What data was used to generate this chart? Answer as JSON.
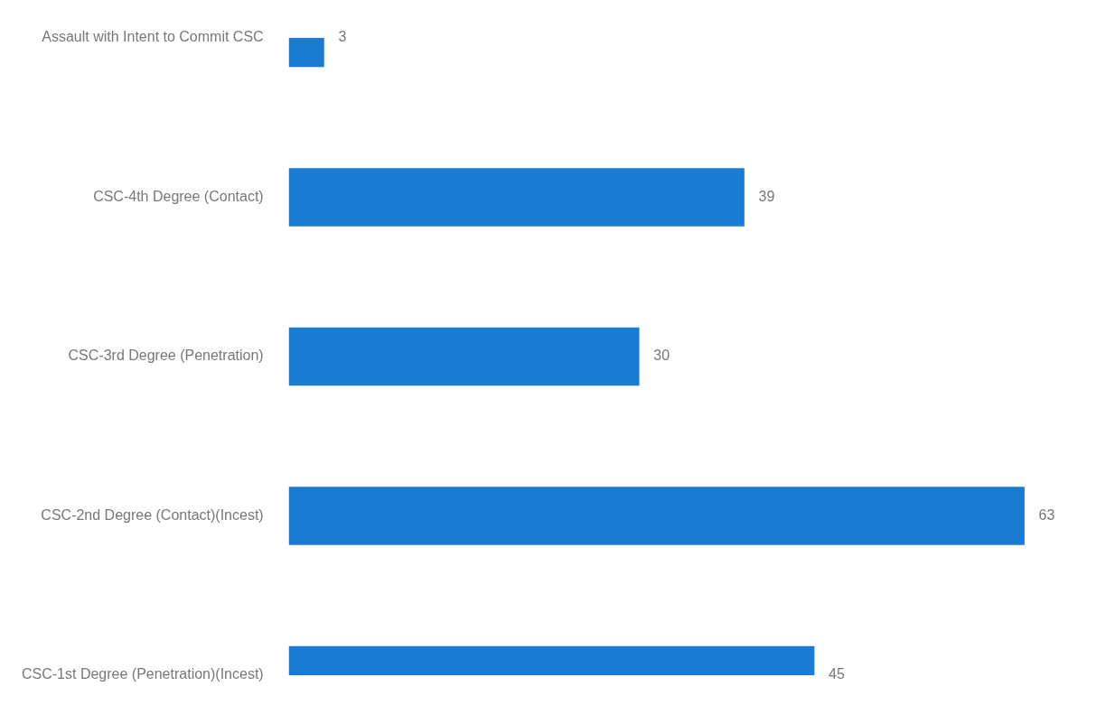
{
  "chart_data": {
    "type": "bar",
    "orientation": "horizontal",
    "categories": [
      "Assault with Intent to Commit CSC",
      "CSC-4th Degree (Contact)",
      "CSC-3rd Degree (Penetration)",
      "CSC-2nd Degree (Contact)(Incest)",
      "CSC-1st Degree (Penetration)(Incest)"
    ],
    "values": [
      3,
      39,
      30,
      63,
      45
    ],
    "color": "#1a7bd3",
    "data_labels": true
  }
}
